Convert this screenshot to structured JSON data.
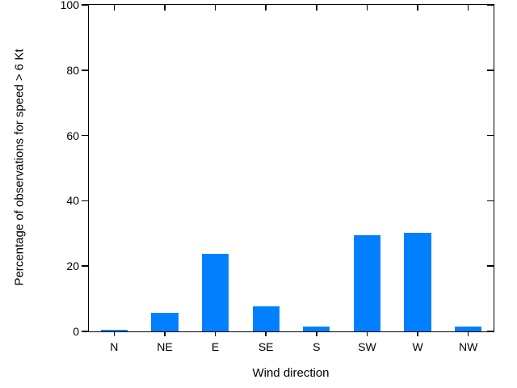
{
  "chart_data": {
    "type": "bar",
    "title": "",
    "categories": [
      "N",
      "NE",
      "E",
      "SE",
      "S",
      "SW",
      "W",
      "NW"
    ],
    "values": [
      0.4,
      5.7,
      23.8,
      7.7,
      1.5,
      29.4,
      30.1,
      1.5
    ],
    "xlabel": "Wind direction",
    "ylabel": "Percentage of observations for speed > 6 Kt",
    "ylim": [
      0,
      100
    ],
    "yticks": [
      0,
      20,
      40,
      60,
      80,
      100
    ],
    "bar_color": "#0080ff",
    "axis_color": "#000000",
    "background_color": "#ffffff",
    "grid": false,
    "legend": false,
    "bar_width_fraction": 0.53
  }
}
